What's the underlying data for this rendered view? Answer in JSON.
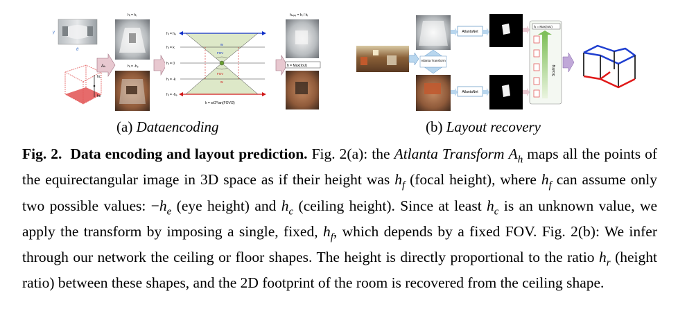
{
  "panel_a": {
    "caption_prefix": "(a) ",
    "caption_label": "Dataencoding",
    "labels": {
      "theta": "θ",
      "gamma": "γ",
      "transform_box": "Aₕ",
      "top_focal": "hᵢ = hⱼ",
      "bottom_focal": "hᵢ = -hₑ",
      "scale_label": "hₛₑₗₑ = hᵢ / hᵢ",
      "max_iou": "h = Max(IoU)",
      "diagram": {
        "h_hc": "hᵢ = hₑ",
        "h_k": "hᵢ = k",
        "h_0": "hᵢ = 0",
        "h_mk": "hᵢ = -k",
        "h_mhe": "hᵢ = -hₑ",
        "w_top": "w",
        "w_bottom": "w",
        "fov_top": "FOV",
        "fov_bottom": "FOV",
        "formula": "k = w/2*tan(FOV/2)"
      }
    }
  },
  "panel_b": {
    "caption_prefix": "(b) ",
    "caption_label": "Layout recovery",
    "labels": {
      "atlanta_transform": "Atlanta Transform",
      "atlantanet_top": "AtlantaNet",
      "atlantanet_bottom": "AtlantaNet",
      "max_label": "hᵢ = Max(IoU)",
      "scaling": "Scaling"
    }
  },
  "caption": {
    "fig_label": "Fig. 2.",
    "title": "Data encoding and layout prediction.",
    "body": [
      {
        "t": " Fig. 2(a): the ",
        "s": "n"
      },
      {
        "t": "Atlanta Transform",
        "s": "i"
      },
      {
        "t": " ",
        "s": "n"
      },
      {
        "t": "A",
        "s": "i"
      },
      {
        "t": "h",
        "s": "sub"
      },
      {
        "t": " maps all the points of the equirectangular image in 3D space as if their height was ",
        "s": "n"
      },
      {
        "t": "h",
        "s": "i"
      },
      {
        "t": "f",
        "s": "sub"
      },
      {
        "t": " (focal height), where ",
        "s": "n"
      },
      {
        "t": "h",
        "s": "i"
      },
      {
        "t": "f",
        "s": "sub"
      },
      {
        "t": " can assume only two possible values: −",
        "s": "n"
      },
      {
        "t": "h",
        "s": "i"
      },
      {
        "t": "e",
        "s": "sub"
      },
      {
        "t": " (eye height) and ",
        "s": "n"
      },
      {
        "t": "h",
        "s": "i"
      },
      {
        "t": "c",
        "s": "sub"
      },
      {
        "t": " (ceiling height). Since at least ",
        "s": "n"
      },
      {
        "t": "h",
        "s": "i"
      },
      {
        "t": "c",
        "s": "sub"
      },
      {
        "t": " is an unknown value, we apply the transform by imposing a single, fixed, ",
        "s": "n"
      },
      {
        "t": "h",
        "s": "i"
      },
      {
        "t": "f",
        "s": "sub"
      },
      {
        "t": ", which depends by a fixed FOV. Fig. 2(b): We infer through our network the ceiling or floor shapes. The height is directly proportional to the ratio ",
        "s": "n"
      },
      {
        "t": "h",
        "s": "i"
      },
      {
        "t": "r",
        "s": "sub"
      },
      {
        "t": " (height ratio) between these shapes, and the 2D footprint of the room is recovered from the ceiling shape.",
        "s": "n"
      }
    ]
  }
}
